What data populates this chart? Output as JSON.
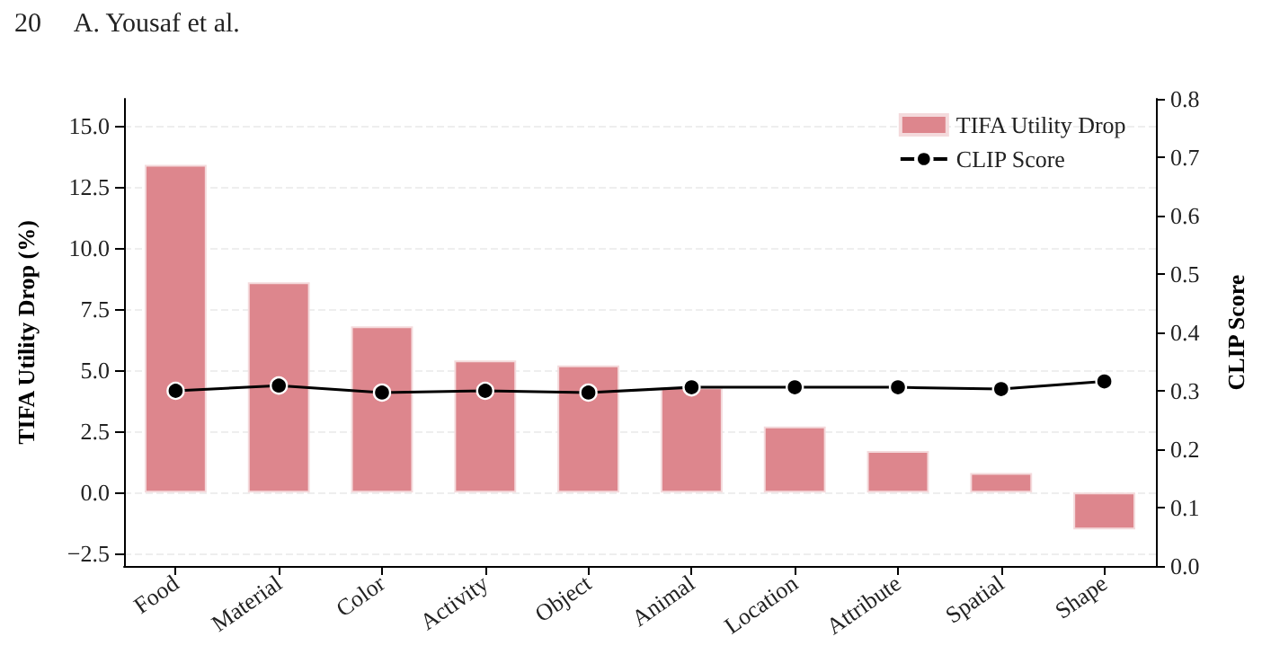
{
  "chart_data": {
    "type": "bar",
    "annotations": [
      "20     A. Yousaf et al."
    ],
    "ylabel": "TIFA Utility Drop (%)",
    "y2label": "CLIP Score",
    "categories": [
      "Food",
      "Material",
      "Color",
      "Activity",
      "Object",
      "Animal",
      "Location",
      "Attribute",
      "Spatial",
      "Shape"
    ],
    "series": [
      {
        "name": "TIFA Utility Drop",
        "color": "#dd868d",
        "values": [
          13.4,
          8.6,
          6.8,
          5.4,
          5.2,
          4.3,
          2.7,
          1.7,
          0.8,
          -1.5
        ]
      },
      {
        "name": "CLIP Score",
        "type": "line",
        "axis": "y2",
        "color": "#000000",
        "marker": "circle",
        "values": [
          0.3,
          0.309,
          0.297,
          0.3,
          0.297,
          0.306,
          0.306,
          0.306,
          0.303,
          0.316
        ]
      }
    ],
    "ylim": [
      -3.0,
      16.1
    ],
    "yticks": [
      {
        "value": -2.5,
        "label": "−2.5"
      },
      {
        "value": 0,
        "label": "0.0"
      },
      {
        "value": 2.5,
        "label": "2.5"
      },
      {
        "value": 5,
        "label": "5.0"
      },
      {
        "value": 7.5,
        "label": "7.5"
      },
      {
        "value": 10,
        "label": "10.0"
      },
      {
        "value": 12.5,
        "label": "12.5"
      },
      {
        "value": 15,
        "label": "15.0"
      }
    ],
    "y2lim": [
      0,
      0.8
    ],
    "y2ticks": [
      {
        "value": 0,
        "label": "0.0"
      },
      {
        "value": 0.1,
        "label": "0.1"
      },
      {
        "value": 0.2,
        "label": "0.2"
      },
      {
        "value": 0.3,
        "label": "0.3"
      },
      {
        "value": 0.4,
        "label": "0.4"
      },
      {
        "value": 0.5,
        "label": "0.5"
      },
      {
        "value": 0.6,
        "label": "0.6"
      },
      {
        "value": 0.7,
        "label": "0.7"
      },
      {
        "value": 0.8,
        "label": "0.8"
      }
    ],
    "grid": "y",
    "legend": "top right"
  }
}
